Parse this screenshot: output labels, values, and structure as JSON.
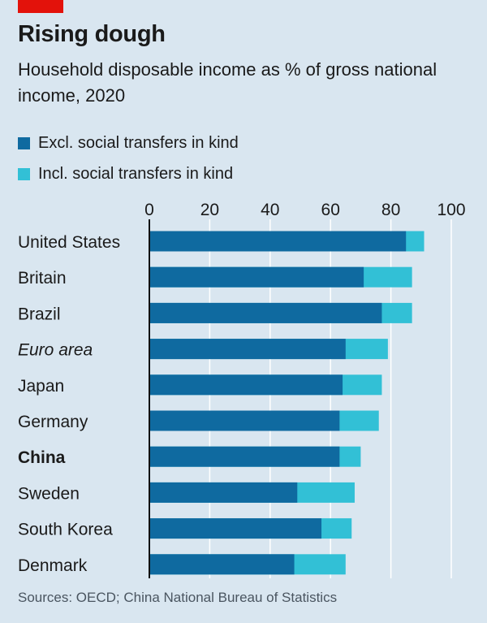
{
  "header": {
    "title": "Rising dough",
    "subtitle": "Household disposable income as % of gross national income, 2020"
  },
  "legend": [
    {
      "label": "Excl. social transfers in kind",
      "color": "#0f6aa0"
    },
    {
      "label": "Incl. social transfers in kind",
      "color": "#32c0d6"
    }
  ],
  "source": "Sources: OECD; China National Bureau of Statistics",
  "colors": {
    "accent": "#e3120b",
    "background": "#d9e6f0",
    "gridline": "#ffffff",
    "axis": "#111111"
  },
  "chart_data": {
    "type": "bar",
    "orientation": "horizontal",
    "stacked": false,
    "title": "Rising dough",
    "subtitle": "Household disposable income as % of gross national income, 2020",
    "xlim": [
      0,
      100
    ],
    "xticks": [
      0,
      20,
      40,
      60,
      80,
      100
    ],
    "grid": true,
    "legend_position": "top-left",
    "categories": [
      "United States",
      "Britain",
      "Brazil",
      "Euro area",
      "Japan",
      "Germany",
      "China",
      "Sweden",
      "South Korea",
      "Denmark"
    ],
    "category_styles": [
      "normal",
      "normal",
      "normal",
      "italic",
      "normal",
      "normal",
      "bold",
      "normal",
      "normal",
      "normal"
    ],
    "series": [
      {
        "name": "Excl. social transfers in kind",
        "color": "#0f6aa0",
        "values": [
          85,
          71,
          77,
          65,
          64,
          63,
          63,
          49,
          57,
          48
        ]
      },
      {
        "name": "Incl. social transfers in kind",
        "color": "#32c0d6",
        "values": [
          91,
          87,
          87,
          79,
          77,
          76,
          70,
          68,
          67,
          65
        ]
      }
    ]
  }
}
